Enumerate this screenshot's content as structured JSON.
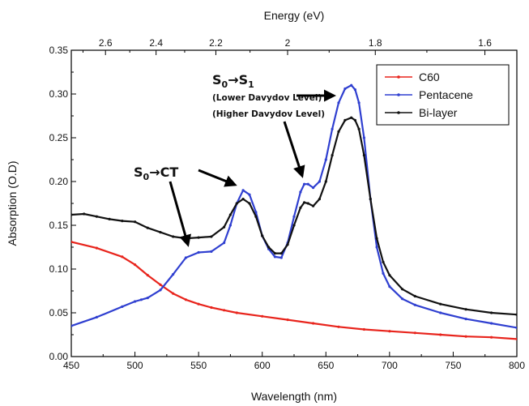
{
  "chart_data": {
    "type": "line",
    "xlabel": "Wavelength (nm)",
    "ylabel": "Absorption (O.D)",
    "top_xlabel": "Energy (eV)",
    "xlim": [
      450,
      800
    ],
    "ylim": [
      0,
      0.35
    ],
    "x_ticks": [
      "450",
      "500",
      "550",
      "600",
      "650",
      "700",
      "750",
      "800"
    ],
    "y_ticks": [
      "0.00",
      "0.05",
      "0.10",
      "0.15",
      "0.20",
      "0.25",
      "0.30",
      "0.35"
    ],
    "top_ticks": [
      "2.6",
      "2.4",
      "2.2",
      "2",
      "1.8",
      "1.6"
    ],
    "grid": false,
    "legend_position": "top-right",
    "series": [
      {
        "name": "C60",
        "color": "#e8241c",
        "x": [
          450,
          470,
          490,
          500,
          510,
          520,
          530,
          540,
          550,
          560,
          570,
          580,
          600,
          620,
          640,
          660,
          680,
          700,
          720,
          740,
          760,
          780,
          800
        ],
        "y": [
          0.131,
          0.124,
          0.114,
          0.105,
          0.093,
          0.082,
          0.072,
          0.065,
          0.06,
          0.056,
          0.053,
          0.05,
          0.046,
          0.042,
          0.038,
          0.034,
          0.031,
          0.029,
          0.027,
          0.025,
          0.023,
          0.022,
          0.02
        ]
      },
      {
        "name": "Pentacene",
        "color": "#2f3fd0",
        "x": [
          450,
          470,
          490,
          500,
          505,
          510,
          520,
          530,
          540,
          550,
          560,
          570,
          575,
          580,
          585,
          590,
          595,
          600,
          605,
          610,
          615,
          620,
          625,
          630,
          633,
          636,
          640,
          645,
          650,
          655,
          660,
          665,
          670,
          673,
          676,
          680,
          685,
          690,
          695,
          700,
          710,
          720,
          740,
          760,
          780,
          800
        ],
        "y": [
          0.035,
          0.045,
          0.057,
          0.063,
          0.065,
          0.067,
          0.076,
          0.094,
          0.113,
          0.119,
          0.12,
          0.13,
          0.15,
          0.175,
          0.19,
          0.185,
          0.165,
          0.138,
          0.123,
          0.114,
          0.113,
          0.13,
          0.16,
          0.188,
          0.197,
          0.197,
          0.193,
          0.2,
          0.225,
          0.26,
          0.29,
          0.306,
          0.31,
          0.305,
          0.29,
          0.25,
          0.18,
          0.125,
          0.095,
          0.08,
          0.066,
          0.059,
          0.05,
          0.043,
          0.038,
          0.033
        ]
      },
      {
        "name": "Bi-layer",
        "color": "#111111",
        "x": [
          450,
          460,
          470,
          480,
          490,
          500,
          510,
          520,
          530,
          540,
          550,
          560,
          570,
          575,
          580,
          585,
          590,
          595,
          600,
          605,
          610,
          615,
          620,
          625,
          630,
          633,
          636,
          640,
          645,
          650,
          655,
          660,
          665,
          670,
          673,
          676,
          680,
          685,
          690,
          695,
          700,
          710,
          720,
          740,
          760,
          780,
          800
        ],
        "y": [
          0.162,
          0.163,
          0.16,
          0.157,
          0.155,
          0.154,
          0.147,
          0.142,
          0.137,
          0.135,
          0.136,
          0.137,
          0.148,
          0.162,
          0.175,
          0.18,
          0.175,
          0.16,
          0.138,
          0.125,
          0.118,
          0.118,
          0.128,
          0.15,
          0.17,
          0.176,
          0.175,
          0.172,
          0.18,
          0.2,
          0.23,
          0.257,
          0.27,
          0.273,
          0.27,
          0.26,
          0.23,
          0.18,
          0.135,
          0.108,
          0.093,
          0.077,
          0.069,
          0.06,
          0.054,
          0.05,
          0.048
        ]
      }
    ]
  },
  "annotations": {
    "s0s1_base": "S",
    "s0s1_sub0": "0",
    "s0s1_arrow": "→",
    "s0s1_sub1": "1",
    "lower_davydov": "(Lower Davydov Level)",
    "higher_davydov": "(Higher Davydov Level)",
    "s0ct_base": "S",
    "s0ct_sub0": "0",
    "s0ct_rest": "→CT"
  }
}
